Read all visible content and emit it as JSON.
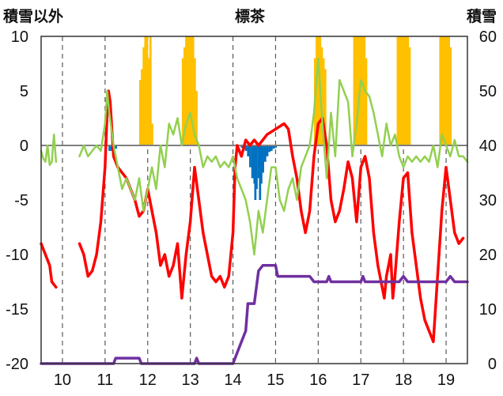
{
  "chart_data": {
    "type": "line",
    "title": "標茶",
    "left_axis_label": "積雪以外",
    "right_axis_label": "積雪",
    "x_ticks": [
      "10",
      "11",
      "12",
      "13",
      "14",
      "15",
      "16",
      "17",
      "18",
      "19"
    ],
    "y_left_ticks": [
      "10",
      "5",
      "0",
      "-5",
      "-10",
      "-15",
      "-20"
    ],
    "y_right_ticks": [
      "60",
      "50",
      "40",
      "30",
      "20",
      "10",
      "0"
    ],
    "xlim": [
      9.5,
      19.5
    ],
    "ylim_left": [
      -20,
      10
    ],
    "ylim_right": [
      0,
      60
    ],
    "grid": "vertical-dashed",
    "colors": {
      "red": "#ff0000",
      "green": "#92d050",
      "purple": "#7030a0",
      "orange": "#ffc000",
      "blue": "#0070c0",
      "zero_line": "#808080",
      "grid": "#595959"
    },
    "series": [
      {
        "color_key": "red",
        "axis": "left",
        "points": [
          [
            9.5,
            -9
          ],
          [
            9.6,
            -10
          ],
          [
            9.7,
            -11
          ],
          [
            9.75,
            -12.5
          ],
          [
            9.85,
            -13
          ],
          null,
          [
            10.4,
            -9
          ],
          [
            10.5,
            -10
          ],
          [
            10.6,
            -12
          ],
          [
            10.7,
            -11.5
          ],
          [
            10.8,
            -10
          ],
          [
            10.9,
            -7
          ],
          [
            11.0,
            -2
          ],
          [
            11.05,
            3
          ],
          [
            11.08,
            5
          ],
          [
            11.12,
            4
          ],
          [
            11.2,
            -1
          ],
          [
            11.3,
            -2
          ],
          [
            11.5,
            -3
          ],
          [
            11.6,
            -4
          ],
          [
            11.7,
            -5
          ],
          [
            11.8,
            -6.5
          ],
          [
            11.9,
            -6
          ],
          [
            12.0,
            -4
          ],
          [
            12.1,
            -6
          ],
          [
            12.2,
            -8
          ],
          [
            12.3,
            -11
          ],
          [
            12.4,
            -10
          ],
          [
            12.5,
            -12
          ],
          [
            12.6,
            -11
          ],
          [
            12.7,
            -9
          ],
          [
            12.8,
            -14
          ],
          [
            12.9,
            -10
          ],
          [
            13.0,
            -7
          ],
          [
            13.1,
            -2
          ],
          [
            13.2,
            -5
          ],
          [
            13.3,
            -8
          ],
          [
            13.4,
            -10
          ],
          [
            13.5,
            -12
          ],
          [
            13.6,
            -12.5
          ],
          [
            13.7,
            -12
          ],
          [
            13.8,
            -13
          ],
          [
            13.9,
            -12
          ],
          [
            14.0,
            -8
          ],
          [
            14.05,
            -2
          ],
          [
            14.1,
            0
          ],
          [
            14.2,
            -1
          ],
          [
            14.3,
            0.5
          ],
          [
            14.4,
            0
          ],
          [
            14.5,
            0.5
          ],
          [
            14.6,
            0
          ],
          [
            14.8,
            1
          ],
          [
            15.0,
            1.5
          ],
          [
            15.2,
            2
          ],
          [
            15.3,
            1.5
          ],
          [
            15.4,
            -1
          ],
          [
            15.5,
            -3
          ],
          [
            15.6,
            -6
          ],
          [
            15.7,
            -8
          ],
          [
            15.8,
            -6
          ],
          [
            15.9,
            -1
          ],
          [
            16.0,
            2
          ],
          [
            16.1,
            2.5
          ],
          [
            16.2,
            0
          ],
          [
            16.3,
            -5
          ],
          [
            16.4,
            -7
          ],
          [
            16.5,
            -6
          ],
          [
            16.6,
            -4
          ],
          [
            16.7,
            -1.5
          ],
          [
            16.8,
            -3
          ],
          [
            16.9,
            -7
          ],
          [
            17.0,
            -2
          ],
          [
            17.1,
            -1
          ],
          [
            17.2,
            -3
          ],
          [
            17.3,
            -8
          ],
          [
            17.4,
            -11
          ],
          [
            17.5,
            -13
          ],
          [
            17.55,
            -14
          ],
          [
            17.6,
            -12
          ],
          [
            17.7,
            -10
          ],
          [
            17.75,
            -14
          ],
          [
            17.8,
            -12
          ],
          [
            17.9,
            -7
          ],
          [
            18.0,
            -3
          ],
          [
            18.1,
            -2.5
          ],
          [
            18.2,
            -8
          ],
          [
            18.3,
            -11
          ],
          [
            18.4,
            -14
          ],
          [
            18.5,
            -16
          ],
          [
            18.6,
            -17
          ],
          [
            18.7,
            -18
          ],
          [
            18.8,
            -12
          ],
          [
            18.9,
            -6
          ],
          [
            19.0,
            -2
          ],
          [
            19.1,
            -5
          ],
          [
            19.2,
            -8
          ],
          [
            19.3,
            -9
          ],
          [
            19.4,
            -8.5
          ]
        ]
      },
      {
        "color_key": "green",
        "axis": "left",
        "points": [
          [
            9.5,
            -0.5
          ],
          [
            9.55,
            -1.2
          ],
          [
            9.6,
            -1.5
          ],
          [
            9.65,
            0
          ],
          [
            9.7,
            -1.8
          ],
          [
            9.75,
            -1.5
          ],
          [
            9.8,
            1
          ],
          [
            9.85,
            -1.5
          ],
          null,
          [
            10.4,
            -1
          ],
          [
            10.5,
            0
          ],
          [
            10.6,
            -1
          ],
          [
            10.7,
            -0.5
          ],
          [
            10.8,
            0
          ],
          [
            10.9,
            -0.5
          ],
          [
            11.0,
            2
          ],
          [
            11.05,
            5
          ],
          [
            11.1,
            3
          ],
          [
            11.2,
            0
          ],
          [
            11.3,
            -2
          ],
          [
            11.4,
            -4
          ],
          [
            11.5,
            -3
          ],
          [
            11.6,
            -4
          ],
          [
            11.7,
            -5
          ],
          [
            11.8,
            -3
          ],
          [
            11.9,
            -6
          ],
          [
            12.0,
            -4
          ],
          [
            12.1,
            -2
          ],
          [
            12.2,
            -4
          ],
          [
            12.3,
            0
          ],
          [
            12.4,
            -2
          ],
          [
            12.5,
            2
          ],
          [
            12.6,
            1
          ],
          [
            12.7,
            2.5
          ],
          [
            12.8,
            0
          ],
          [
            12.9,
            2
          ],
          [
            13.0,
            3
          ],
          [
            13.1,
            1
          ],
          [
            13.2,
            0
          ],
          [
            13.3,
            -2
          ],
          [
            13.4,
            -1
          ],
          [
            13.5,
            -1.5
          ],
          [
            13.6,
            -1
          ],
          [
            13.7,
            -2
          ],
          [
            13.8,
            -1.5
          ],
          [
            13.9,
            -2
          ],
          [
            14.0,
            -1
          ],
          [
            14.1,
            -3
          ],
          [
            14.2,
            -4
          ],
          [
            14.3,
            -5
          ],
          [
            14.4,
            -7
          ],
          [
            14.5,
            -10
          ],
          [
            14.6,
            -6
          ],
          [
            14.7,
            -8
          ],
          [
            14.8,
            -5
          ],
          [
            14.9,
            -2
          ],
          [
            15.0,
            -2
          ],
          [
            15.1,
            -5
          ],
          [
            15.2,
            -6
          ],
          [
            15.3,
            -4
          ],
          [
            15.4,
            -3
          ],
          [
            15.5,
            -5
          ],
          [
            15.6,
            -2
          ],
          [
            15.7,
            -1
          ],
          [
            15.8,
            0
          ],
          [
            15.9,
            3
          ],
          [
            16.0,
            8
          ],
          [
            16.05,
            5
          ],
          [
            16.1,
            2
          ],
          [
            16.2,
            -3
          ],
          [
            16.3,
            3
          ],
          [
            16.4,
            -1
          ],
          [
            16.5,
            6
          ],
          [
            16.6,
            5
          ],
          [
            16.7,
            4
          ],
          [
            16.8,
            -1
          ],
          [
            16.9,
            2
          ],
          [
            17.0,
            6
          ],
          [
            17.1,
            5
          ],
          [
            17.2,
            4.5
          ],
          [
            17.3,
            3
          ],
          [
            17.4,
            1
          ],
          [
            17.5,
            -1
          ],
          [
            17.6,
            2
          ],
          [
            17.7,
            0
          ],
          [
            17.8,
            1
          ],
          [
            17.9,
            -1
          ],
          [
            18.0,
            -2
          ],
          [
            18.1,
            -1
          ],
          [
            18.2,
            -1.5
          ],
          [
            18.3,
            -1
          ],
          [
            18.4,
            -1.5
          ],
          [
            18.5,
            -1
          ],
          [
            18.6,
            -1.5
          ],
          [
            18.7,
            0
          ],
          [
            18.8,
            -2
          ],
          [
            18.9,
            1
          ],
          [
            19.0,
            0
          ],
          [
            19.1,
            -1
          ],
          [
            19.2,
            0.5
          ],
          [
            19.3,
            -1
          ],
          [
            19.4,
            -1
          ],
          [
            19.5,
            -1.5
          ]
        ]
      },
      {
        "color_key": "purple",
        "axis": "left",
        "points": [
          [
            9.5,
            -20
          ],
          [
            11.2,
            -20
          ],
          [
            11.25,
            -19.5
          ],
          [
            11.8,
            -19.5
          ],
          [
            11.85,
            -20
          ],
          [
            13.1,
            -20
          ],
          [
            13.15,
            -19.5
          ],
          [
            13.2,
            -20
          ],
          [
            14.0,
            -20
          ],
          [
            14.1,
            -19
          ],
          [
            14.2,
            -18
          ],
          [
            14.3,
            -17
          ],
          [
            14.35,
            -14.5
          ],
          [
            14.5,
            -14.5
          ],
          [
            14.6,
            -11.5
          ],
          [
            14.7,
            -11
          ],
          [
            15.0,
            -11
          ],
          [
            15.05,
            -12
          ],
          [
            15.8,
            -12
          ],
          [
            15.9,
            -12.5
          ],
          [
            16.2,
            -12.5
          ],
          [
            16.25,
            -12
          ],
          [
            16.3,
            -12.5
          ],
          [
            17.0,
            -12.5
          ],
          [
            17.05,
            -12
          ],
          [
            17.1,
            -12.5
          ],
          [
            17.9,
            -12.5
          ],
          [
            18.0,
            -12
          ],
          [
            18.1,
            -12.5
          ],
          [
            19.0,
            -12.5
          ],
          [
            19.1,
            -12
          ],
          [
            19.2,
            -12.5
          ],
          [
            19.5,
            -12.5
          ]
        ]
      }
    ],
    "bars_orange": [
      [
        11.82,
        6
      ],
      [
        11.86,
        7
      ],
      [
        11.9,
        9
      ],
      [
        11.94,
        10
      ],
      [
        11.98,
        10
      ],
      [
        12.02,
        8
      ],
      [
        12.06,
        10
      ],
      [
        12.1,
        2
      ],
      [
        12.82,
        8
      ],
      [
        12.86,
        9
      ],
      [
        12.9,
        10
      ],
      [
        12.94,
        10
      ],
      [
        12.98,
        10
      ],
      [
        13.02,
        10
      ],
      [
        13.06,
        10
      ],
      [
        13.1,
        8
      ],
      [
        13.14,
        5
      ],
      [
        15.92,
        8
      ],
      [
        15.96,
        10
      ],
      [
        16.0,
        10
      ],
      [
        16.04,
        10
      ],
      [
        16.08,
        9
      ],
      [
        16.12,
        8
      ],
      [
        16.16,
        7
      ],
      [
        16.84,
        10
      ],
      [
        16.88,
        10
      ],
      [
        16.92,
        10
      ],
      [
        16.96,
        10
      ],
      [
        17.0,
        10
      ],
      [
        17.04,
        10
      ],
      [
        17.08,
        10
      ],
      [
        17.12,
        8
      ],
      [
        17.86,
        10
      ],
      [
        17.9,
        10
      ],
      [
        17.94,
        10
      ],
      [
        17.98,
        10
      ],
      [
        18.02,
        10
      ],
      [
        18.06,
        10
      ],
      [
        18.1,
        10
      ],
      [
        18.14,
        9
      ],
      [
        18.86,
        10
      ],
      [
        18.9,
        10
      ],
      [
        18.94,
        10
      ],
      [
        18.98,
        10
      ],
      [
        19.02,
        10
      ],
      [
        19.06,
        10
      ],
      [
        19.1,
        9
      ]
    ],
    "bars_blue": [
      [
        11.1,
        -0.5
      ],
      [
        11.15,
        -0.5
      ],
      [
        11.2,
        -0.3
      ],
      [
        11.25,
        -0.3
      ],
      [
        14.2,
        -0.2
      ],
      [
        14.25,
        -0.2
      ],
      [
        14.3,
        -0.5
      ],
      [
        14.35,
        -1
      ],
      [
        14.4,
        -2
      ],
      [
        14.45,
        -3
      ],
      [
        14.5,
        -3.5
      ],
      [
        14.52,
        -5
      ],
      [
        14.55,
        -4
      ],
      [
        14.6,
        -3
      ],
      [
        14.63,
        -5
      ],
      [
        14.66,
        -3.5
      ],
      [
        14.7,
        -2.5
      ],
      [
        14.75,
        -1.5
      ],
      [
        14.8,
        -1
      ],
      [
        14.85,
        -0.6
      ],
      [
        14.9,
        -0.5
      ],
      [
        14.95,
        -0.3
      ],
      [
        15.0,
        -0.2
      ]
    ]
  }
}
